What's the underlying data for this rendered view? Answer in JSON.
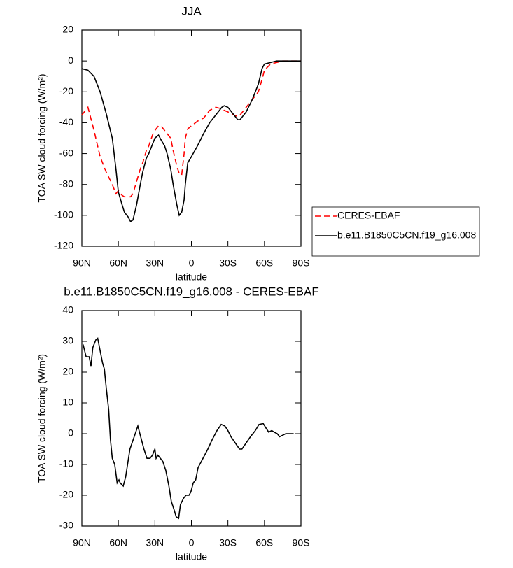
{
  "chart_data": [
    {
      "type": "line",
      "title": "JJA",
      "xlabel": "latitude",
      "ylabel": "TOA SW cloud forcing (W/m²)",
      "xlim": [
        90,
        -90
      ],
      "xticks": [
        {
          "value": 90,
          "label": "90N"
        },
        {
          "value": 60,
          "label": "60N"
        },
        {
          "value": 30,
          "label": "30N"
        },
        0,
        {
          "value": -30,
          "label": "30S"
        },
        {
          "value": -60,
          "label": "60S"
        },
        {
          "value": -90,
          "label": "90S"
        }
      ],
      "ylim": [
        -120,
        20
      ],
      "yticks": [
        -120,
        -100,
        -80,
        -60,
        -40,
        -20,
        0,
        20
      ],
      "legend": "right",
      "x": [
        90,
        85,
        80,
        75,
        70,
        65,
        62,
        60,
        57,
        55,
        52,
        50,
        48,
        45,
        42,
        40,
        37,
        35,
        32,
        30,
        27,
        25,
        22,
        20,
        17,
        15,
        12,
        10,
        8,
        6,
        5,
        3,
        0,
        -5,
        -10,
        -15,
        -20,
        -25,
        -27,
        -30,
        -35,
        -38,
        -40,
        -45,
        -50,
        -55,
        -58,
        -60,
        -65,
        -70,
        -75,
        -80,
        -90
      ],
      "series": [
        {
          "name": "CERES-EBAF",
          "color": "#ff0000",
          "line_style": "dashed",
          "values": [
            -35,
            -30,
            -45,
            -62,
            -72,
            -80,
            -86,
            -84,
            -87,
            -88,
            -88,
            -88,
            -86,
            -78,
            -70,
            -66,
            -58,
            -55,
            -48,
            -45,
            -42,
            -42,
            -45,
            -47,
            -50,
            -58,
            -68,
            -73,
            -74,
            -60,
            -50,
            -44,
            -42,
            -39,
            -37,
            -32,
            -30,
            -31,
            -32,
            -33,
            -35,
            -36,
            -35,
            -30,
            -25,
            -20,
            -12,
            -6,
            -2,
            -1,
            0,
            0,
            0
          ]
        },
        {
          "name": "b.e11.B1850C5CN.f19_g16.008",
          "color": "#000000",
          "line_style": "solid",
          "values": [
            -5,
            -6,
            -10,
            -20,
            -34,
            -50,
            -70,
            -85,
            -93,
            -98,
            -101,
            -104,
            -103,
            -93,
            -80,
            -72,
            -63,
            -60,
            -54,
            -50,
            -48,
            -51,
            -55,
            -60,
            -70,
            -80,
            -93,
            -100,
            -98,
            -90,
            -80,
            -66,
            -62,
            -55,
            -47,
            -40,
            -35,
            -30,
            -29,
            -30,
            -35,
            -38,
            -38,
            -33,
            -25,
            -15,
            -5,
            -2,
            -1,
            0,
            0,
            0,
            0
          ]
        }
      ]
    },
    {
      "type": "line",
      "title": "b.e11.B1850C5CN.f19_g16.008 - CERES-EBAF",
      "xlabel": "latitude",
      "ylabel": "TOA SW cloud forcing (W/m²)",
      "xlim": [
        90,
        -90
      ],
      "xticks": [
        {
          "value": 90,
          "label": "90N"
        },
        {
          "value": 60,
          "label": "60N"
        },
        {
          "value": 30,
          "label": "30N"
        },
        0,
        {
          "value": -30,
          "label": "30S"
        },
        {
          "value": -60,
          "label": "60S"
        },
        {
          "value": -90,
          "label": "90S"
        }
      ],
      "ylim": [
        -30,
        40
      ],
      "yticks": [
        -30,
        -20,
        -10,
        0,
        10,
        20,
        30,
        40
      ],
      "x": [
        89,
        86.5,
        84,
        82.5,
        81,
        78.5,
        77,
        75,
        73,
        71.5,
        70,
        68,
        66.5,
        65,
        63,
        61,
        59.5,
        58.5,
        56,
        54,
        50.5,
        47,
        44,
        41,
        39,
        36.5,
        34,
        32,
        30,
        29,
        27.5,
        25.5,
        23.5,
        21,
        18.5,
        16.5,
        14,
        12.5,
        10.5,
        9,
        6.5,
        4.5,
        2,
        0.5,
        -1.5,
        -3.5,
        -5.5,
        -9.5,
        -13.5,
        -17,
        -21,
        -24.5,
        -27.5,
        -30,
        -32.5,
        -36,
        -39.5,
        -41.5,
        -45,
        -48.5,
        -52.5,
        -55.5,
        -59,
        -61,
        -63.5,
        -66,
        -68,
        -70.5,
        -72.5,
        -75,
        -77.5,
        -79.5,
        -82,
        -84
      ],
      "series": [
        {
          "name": "b.e11.B1850C5CN.f19_g16.008 - CERES-EBAF",
          "color": "#000000",
          "line_style": "solid",
          "values": [
            29,
            25,
            25,
            22,
            28,
            30.5,
            31,
            27,
            23,
            21,
            15,
            8,
            -2,
            -8,
            -10,
            -16,
            -15,
            -16,
            -17,
            -14,
            -5,
            -1,
            2.5,
            -2,
            -5,
            -8,
            -8,
            -7,
            -5,
            -8,
            -7,
            -8,
            -9,
            -12,
            -17,
            -22,
            -25,
            -27,
            -27.5,
            -23,
            -21,
            -20,
            -20,
            -19,
            -16,
            -15,
            -11,
            -8,
            -5,
            -2,
            1,
            3,
            2.5,
            1,
            -1,
            -3,
            -5,
            -5,
            -3,
            -1,
            1,
            3,
            3.3,
            2,
            0.5,
            1,
            0.5,
            0,
            -1,
            -0.5,
            0,
            0,
            0,
            0
          ]
        }
      ]
    }
  ]
}
